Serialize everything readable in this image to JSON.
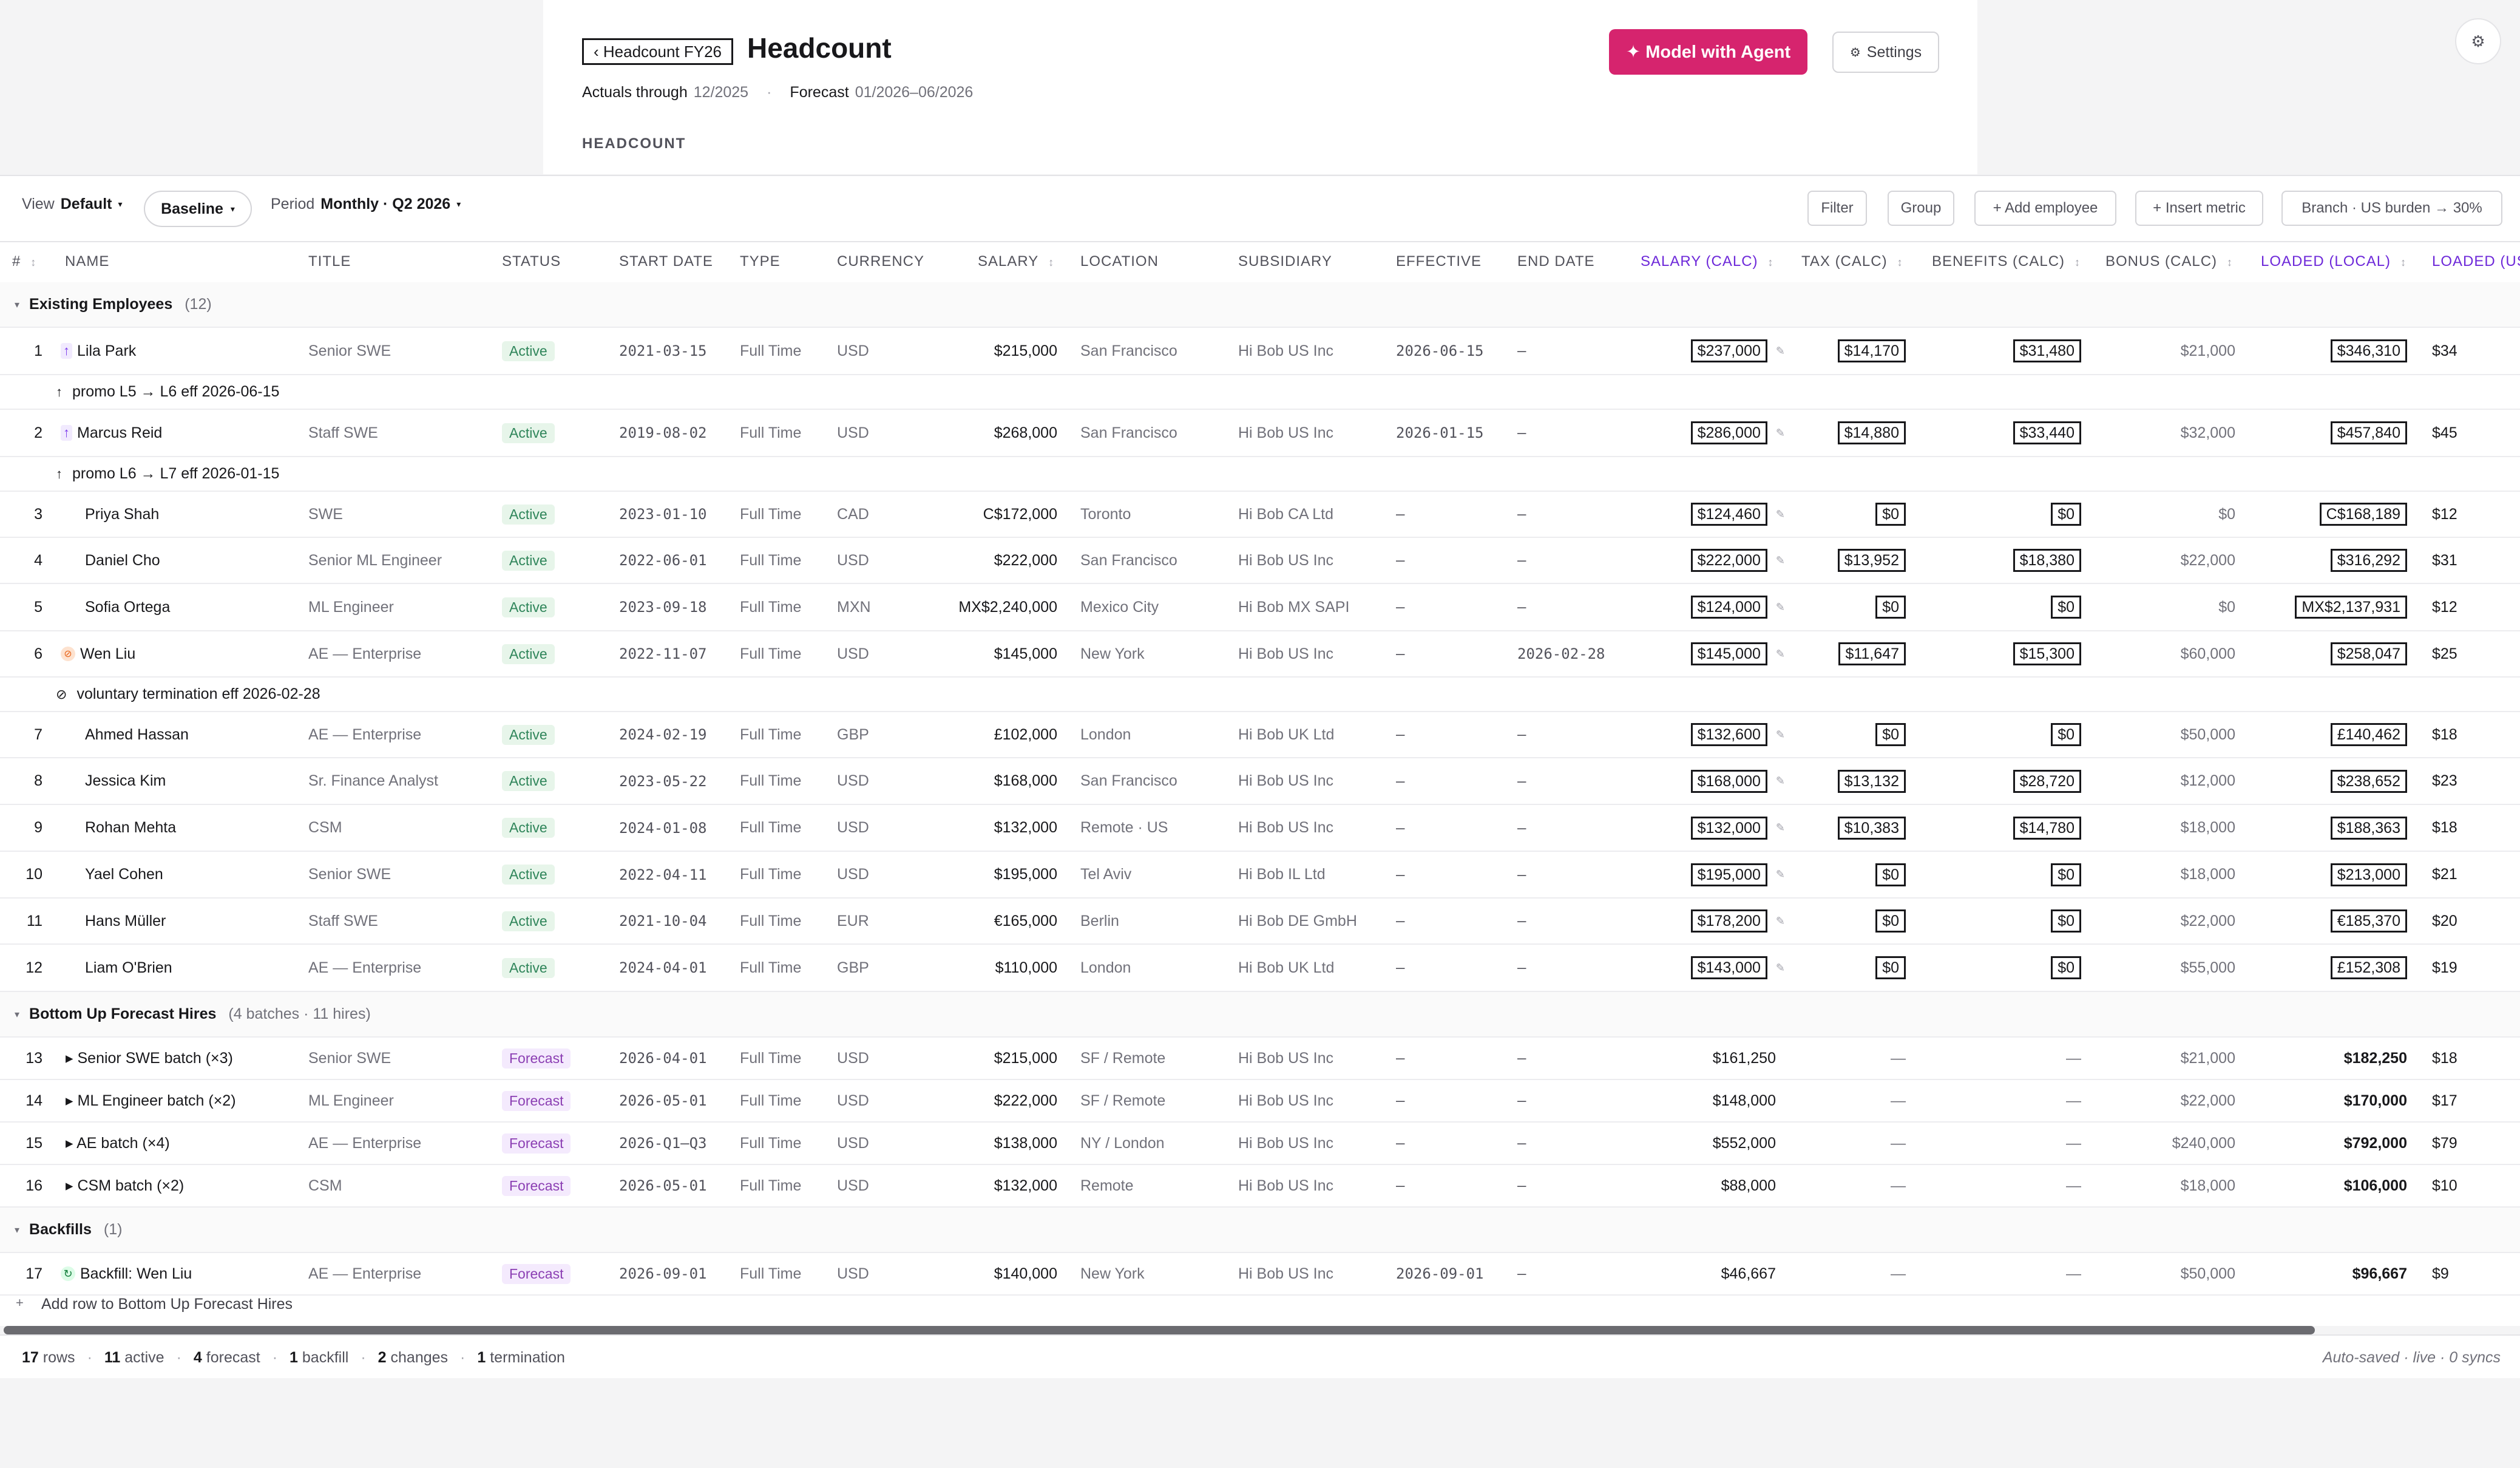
{
  "header": {
    "back_label": "‹ Headcount FY26",
    "title": "Headcount",
    "actuals_label": "Actuals through",
    "actuals_value": "12/2025",
    "forecast_label": "Forecast",
    "forecast_value": "01/2026–06/2026",
    "section_caption": "HEADCOUNT",
    "agent_button": "✦ Model with Agent",
    "settings_icon": "gear-icon",
    "settings_button": "Settings",
    "corner_icon": "gear-icon",
    "accent_color": "#d6246e"
  },
  "toolbar": {
    "view_label": "View",
    "view_value": "Default",
    "scenario": "Baseline",
    "period_label": "Period",
    "period_value": "Monthly · Q2 2026",
    "filter": "Filter",
    "group": "Group",
    "add_employee": "+ Add employee",
    "insert_metric": "+ Insert metric",
    "branch": "Branch · US burden → 30%"
  },
  "columns": {
    "idx": "#",
    "name": "NAME",
    "title": "TITLE",
    "status": "STATUS",
    "start": "START DATE",
    "type": "TYPE",
    "currency": "CURRENCY",
    "salary": "SALARY",
    "location": "LOCATION",
    "subsidiary": "SUBSIDIARY",
    "effective": "EFFECTIVE",
    "end": "END DATE",
    "salary_calc": "SALARY (CALC)",
    "tax_calc": "TAX (CALC)",
    "benefits_calc": "BENEFITS (CALC)",
    "bonus_calc": "BONUS (CALC)",
    "loaded_local": "LOADED (LOCAL)",
    "loaded_usd": "LOADED (US"
  },
  "groups": {
    "existing": {
      "label": "Existing Employees",
      "count": "(12)"
    },
    "forecast": {
      "label": "Bottom Up Forecast Hires",
      "count": "(4 batches · 11 hires)"
    },
    "backfills": {
      "label": "Backfills",
      "count": "(1)"
    }
  },
  "notes": {
    "n1": "promo L5 → L6 eff 2026-06-15",
    "n2": "promo L6 → L7 eff 2026-01-15",
    "n6": "voluntary termination eff 2026-02-28"
  },
  "rows": [
    {
      "idx": "1",
      "name": "Lila Park",
      "title": "Senior SWE",
      "status": "Active",
      "start": "2021-03-15",
      "type": "Full Time",
      "currency": "USD",
      "salary": "$215,000",
      "location": "San Francisco",
      "subsidiary": "Hi Bob US Inc",
      "effective": "2026-06-15",
      "end": "—",
      "salary_calc": "$237,000",
      "tax": "$14,170",
      "benefits": "$31,480",
      "bonus": "$21,000",
      "loaded_local": "$346,310",
      "loaded_usd": "$34"
    },
    {
      "idx": "2",
      "name": "Marcus Reid",
      "title": "Staff SWE",
      "status": "Active",
      "start": "2019-08-02",
      "type": "Full Time",
      "currency": "USD",
      "salary": "$268,000",
      "location": "San Francisco",
      "subsidiary": "Hi Bob US Inc",
      "effective": "2026-01-15",
      "end": "—",
      "salary_calc": "$286,000",
      "tax": "$14,880",
      "benefits": "$33,440",
      "bonus": "$32,000",
      "loaded_local": "$457,840",
      "loaded_usd": "$45"
    },
    {
      "idx": "3",
      "name": "Priya Shah",
      "title": "SWE",
      "status": "Active",
      "start": "2023-01-10",
      "type": "Full Time",
      "currency": "CAD",
      "salary": "C$172,000",
      "location": "Toronto",
      "subsidiary": "Hi Bob CA Ltd",
      "effective": "—",
      "end": "—",
      "salary_calc": "$124,460",
      "tax": "$0",
      "benefits": "$0",
      "bonus": "$0",
      "loaded_local": "C$168,189",
      "loaded_usd": "$12"
    },
    {
      "idx": "4",
      "name": "Daniel Cho",
      "title": "Senior ML Engineer",
      "status": "Active",
      "start": "2022-06-01",
      "type": "Full Time",
      "currency": "USD",
      "salary": "$222,000",
      "location": "San Francisco",
      "subsidiary": "Hi Bob US Inc",
      "effective": "—",
      "end": "—",
      "salary_calc": "$222,000",
      "tax": "$13,952",
      "benefits": "$18,380",
      "bonus": "$22,000",
      "loaded_local": "$316,292",
      "loaded_usd": "$31"
    },
    {
      "idx": "5",
      "name": "Sofia Ortega",
      "title": "ML Engineer",
      "status": "Active",
      "start": "2023-09-18",
      "type": "Full Time",
      "currency": "MXN",
      "salary": "MX$2,240,000",
      "location": "Mexico City",
      "subsidiary": "Hi Bob MX SAPI",
      "effective": "—",
      "end": "—",
      "salary_calc": "$124,000",
      "tax": "$0",
      "benefits": "$0",
      "bonus": "$0",
      "loaded_local": "MX$2,137,931",
      "loaded_usd": "$12"
    },
    {
      "idx": "6",
      "name": "Wen Liu",
      "title": "AE — Enterprise",
      "status": "Active",
      "start": "2022-11-07",
      "type": "Full Time",
      "currency": "USD",
      "salary": "$145,000",
      "location": "New York",
      "subsidiary": "Hi Bob US Inc",
      "effective": "—",
      "end": "2026-02-28",
      "salary_calc": "$145,000",
      "tax": "$11,647",
      "benefits": "$15,300",
      "bonus": "$60,000",
      "loaded_local": "$258,047",
      "loaded_usd": "$25"
    },
    {
      "idx": "7",
      "name": "Ahmed Hassan",
      "title": "AE — Enterprise",
      "status": "Active",
      "start": "2024-02-19",
      "type": "Full Time",
      "currency": "GBP",
      "salary": "£102,000",
      "location": "London",
      "subsidiary": "Hi Bob UK Ltd",
      "effective": "—",
      "end": "—",
      "salary_calc": "$132,600",
      "tax": "$0",
      "benefits": "$0",
      "bonus": "$50,000",
      "loaded_local": "£140,462",
      "loaded_usd": "$18"
    },
    {
      "idx": "8",
      "name": "Jessica Kim",
      "title": "Sr. Finance Analyst",
      "status": "Active",
      "start": "2023-05-22",
      "type": "Full Time",
      "currency": "USD",
      "salary": "$168,000",
      "location": "San Francisco",
      "subsidiary": "Hi Bob US Inc",
      "effective": "—",
      "end": "—",
      "salary_calc": "$168,000",
      "tax": "$13,132",
      "benefits": "$28,720",
      "bonus": "$12,000",
      "loaded_local": "$238,652",
      "loaded_usd": "$23"
    },
    {
      "idx": "9",
      "name": "Rohan Mehta",
      "title": "CSM",
      "status": "Active",
      "start": "2024-01-08",
      "type": "Full Time",
      "currency": "USD",
      "salary": "$132,000",
      "location": "Remote · US",
      "subsidiary": "Hi Bob US Inc",
      "effective": "—",
      "end": "—",
      "salary_calc": "$132,000",
      "tax": "$10,383",
      "benefits": "$14,780",
      "bonus": "$18,000",
      "loaded_local": "$188,363",
      "loaded_usd": "$18"
    },
    {
      "idx": "10",
      "name": "Yael Cohen",
      "title": "Senior SWE",
      "status": "Active",
      "start": "2022-04-11",
      "type": "Full Time",
      "currency": "USD",
      "salary": "$195,000",
      "location": "Tel Aviv",
      "subsidiary": "Hi Bob IL Ltd",
      "effective": "—",
      "end": "—",
      "salary_calc": "$195,000",
      "tax": "$0",
      "benefits": "$0",
      "bonus": "$18,000",
      "loaded_local": "$213,000",
      "loaded_usd": "$21"
    },
    {
      "idx": "11",
      "name": "Hans Müller",
      "title": "Staff SWE",
      "status": "Active",
      "start": "2021-10-04",
      "type": "Full Time",
      "currency": "EUR",
      "salary": "€165,000",
      "location": "Berlin",
      "subsidiary": "Hi Bob DE GmbH",
      "effective": "—",
      "end": "—",
      "salary_calc": "$178,200",
      "tax": "$0",
      "benefits": "$0",
      "bonus": "$22,000",
      "loaded_local": "€185,370",
      "loaded_usd": "$20"
    },
    {
      "idx": "12",
      "name": "Liam O'Brien",
      "title": "AE — Enterprise",
      "status": "Active",
      "start": "2024-04-01",
      "type": "Full Time",
      "currency": "GBP",
      "salary": "$110,000",
      "location": "London",
      "subsidiary": "Hi Bob UK Ltd",
      "effective": "—",
      "end": "—",
      "salary_calc": "$143,000",
      "tax": "$0",
      "benefits": "$0",
      "bonus": "$55,000",
      "loaded_local": "£152,308",
      "loaded_usd": "$19"
    },
    {
      "idx": "13",
      "name": "▸ Senior SWE batch (×3)",
      "title": "Senior SWE",
      "status": "Forecast",
      "start": "2026-04-01",
      "type": "Full Time",
      "currency": "USD",
      "salary": "$215,000",
      "location": "SF / Remote",
      "subsidiary": "Hi Bob US Inc",
      "effective": "—",
      "end": "—",
      "salary_calc": "$161,250",
      "tax": "—",
      "benefits": "—",
      "bonus": "$21,000",
      "loaded_local": "$182,250",
      "loaded_usd": "$18"
    },
    {
      "idx": "14",
      "name": "▸ ML Engineer batch (×2)",
      "title": "ML Engineer",
      "status": "Forecast",
      "start": "2026-05-01",
      "type": "Full Time",
      "currency": "USD",
      "salary": "$222,000",
      "location": "SF / Remote",
      "subsidiary": "Hi Bob US Inc",
      "effective": "—",
      "end": "—",
      "salary_calc": "$148,000",
      "tax": "—",
      "benefits": "—",
      "bonus": "$22,000",
      "loaded_local": "$170,000",
      "loaded_usd": "$17"
    },
    {
      "idx": "15",
      "name": "▸ AE batch (×4)",
      "title": "AE — Enterprise",
      "status": "Forecast",
      "start": "2026-Q1–Q3",
      "type": "Full Time",
      "currency": "USD",
      "salary": "$138,000",
      "location": "NY / London",
      "subsidiary": "Hi Bob US Inc",
      "effective": "—",
      "end": "—",
      "salary_calc": "$552,000",
      "tax": "—",
      "benefits": "—",
      "bonus": "$240,000",
      "loaded_local": "$792,000",
      "loaded_usd": "$79"
    },
    {
      "idx": "16",
      "name": "▸ CSM batch (×2)",
      "title": "CSM",
      "status": "Forecast",
      "start": "2026-05-01",
      "type": "Full Time",
      "currency": "USD",
      "salary": "$132,000",
      "location": "Remote",
      "subsidiary": "Hi Bob US Inc",
      "effective": "—",
      "end": "—",
      "salary_calc": "$88,000",
      "tax": "—",
      "benefits": "—",
      "bonus": "$18,000",
      "loaded_local": "$106,000",
      "loaded_usd": "$10"
    },
    {
      "idx": "17",
      "name": "Backfill: Wen Liu",
      "title": "AE — Enterprise",
      "status": "Forecast",
      "start": "2026-09-01",
      "type": "Full Time",
      "currency": "USD",
      "salary": "$140,000",
      "location": "New York",
      "subsidiary": "Hi Bob US Inc",
      "effective": "2026-09-01",
      "end": "—",
      "salary_calc": "$46,667",
      "tax": "—",
      "benefits": "—",
      "bonus": "$50,000",
      "loaded_local": "$96,667",
      "loaded_usd": "$9"
    }
  ],
  "add_row": "Add row to Bottom Up Forecast Hires",
  "footer": {
    "rows_n": "17",
    "rows_l": "rows",
    "active_n": "11",
    "active_l": "active",
    "forecast_n": "4",
    "forecast_l": "forecast",
    "backfill_n": "1",
    "backfill_l": "backfill",
    "changes_n": "2",
    "changes_l": "changes",
    "term_n": "1",
    "term_l": "termination",
    "autosave": "Auto-saved · live · 0 syncs"
  },
  "colors": {
    "active_badge": "#2f855a",
    "forecast_badge": "#8b3fb3",
    "calc_header": "#6d28d9"
  }
}
